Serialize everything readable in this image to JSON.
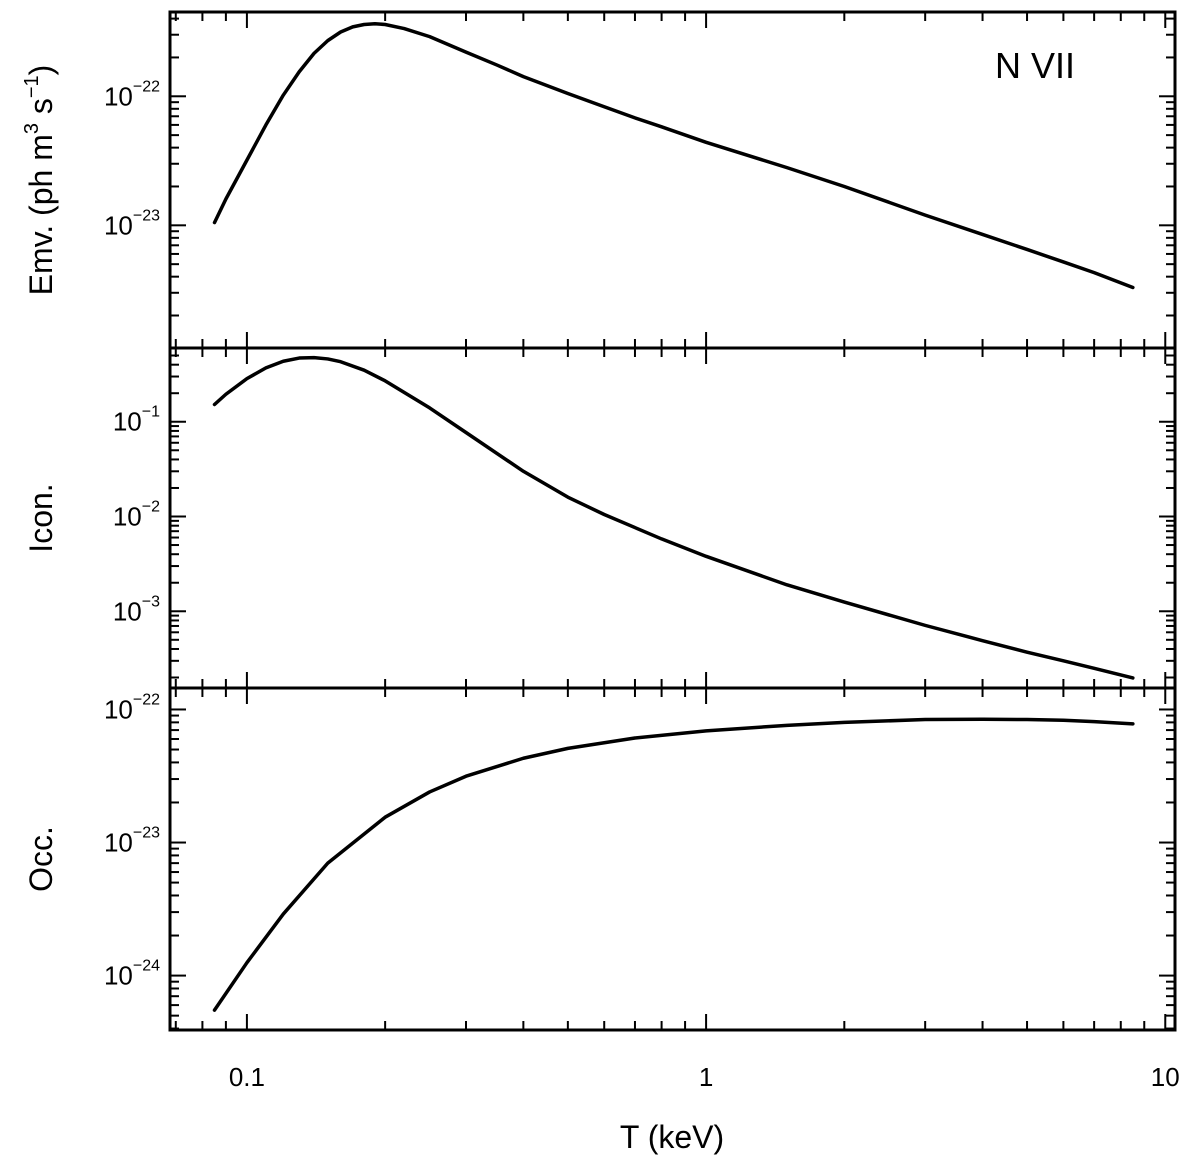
{
  "chart_data": {
    "type": "line",
    "annotation": "N VII",
    "xlabel": "T (keV)",
    "xscale": "log",
    "xlim": [
      0.068,
      10.5
    ],
    "xticks": [
      {
        "value": 0.1,
        "label": "0.1"
      },
      {
        "value": 1,
        "label": "1"
      },
      {
        "value": 10,
        "label": "10"
      }
    ],
    "panels": [
      {
        "name": "emv",
        "ylabel": "Emv. (ph m³ s⁻¹)",
        "ylabel_parts": {
          "prefix": "Emv. (ph m",
          "sup1": "3",
          "mid": " s",
          "sup2": "−1",
          "suffix": ")"
        },
        "yscale": "log",
        "ylim": [
          1.12e-24,
          4.5e-22
        ],
        "yticks": [
          {
            "value": 1e-22,
            "base": "10",
            "exp": "−22"
          },
          {
            "value": 1e-23,
            "base": "10",
            "exp": "−23"
          }
        ],
        "series": [
          {
            "name": "Emv.",
            "x": [
              0.085,
              0.09,
              0.1,
              0.11,
              0.12,
              0.13,
              0.14,
              0.15,
              0.16,
              0.17,
              0.18,
              0.19,
              0.2,
              0.22,
              0.25,
              0.3,
              0.35,
              0.4,
              0.5,
              0.6,
              0.7,
              0.8,
              1.0,
              1.5,
              2.0,
              3.0,
              4.0,
              5.0,
              6.0,
              7.0,
              8.5
            ],
            "y": [
              1.05e-23,
              1.6e-23,
              3.2e-23,
              6e-23,
              1.02e-22,
              1.55e-22,
              2.15e-22,
              2.7e-22,
              3.15e-22,
              3.45e-22,
              3.6e-22,
              3.65e-22,
              3.6e-22,
              3.35e-22,
              2.9e-22,
              2.2e-22,
              1.75e-22,
              1.42e-22,
              1.05e-22,
              8.3e-23,
              6.8e-23,
              5.8e-23,
              4.4e-23,
              2.8e-23,
              2e-23,
              1.2e-23,
              8.5e-24,
              6.5e-24,
              5.2e-24,
              4.3e-24,
              3.3e-24
            ]
          }
        ]
      },
      {
        "name": "icon",
        "ylabel": "Icon.",
        "yscale": "log",
        "ylim": [
          0.000155,
          0.6
        ],
        "yticks": [
          {
            "value": 0.1,
            "base": "10",
            "exp": "−1"
          },
          {
            "value": 0.01,
            "base": "10",
            "exp": "−2"
          },
          {
            "value": 0.001,
            "base": "10",
            "exp": "−3"
          }
        ],
        "series": [
          {
            "name": "Icon.",
            "x": [
              0.085,
              0.09,
              0.1,
              0.11,
              0.12,
              0.13,
              0.14,
              0.15,
              0.16,
              0.18,
              0.2,
              0.25,
              0.3,
              0.4,
              0.5,
              0.6,
              0.8,
              1.0,
              1.5,
              2.0,
              3.0,
              4.0,
              5.0,
              6.0,
              7.0,
              8.5
            ],
            "y": [
              0.152,
              0.195,
              0.285,
              0.37,
              0.435,
              0.47,
              0.475,
              0.46,
              0.43,
              0.35,
              0.27,
              0.14,
              0.077,
              0.03,
              0.016,
              0.0105,
              0.0058,
              0.0038,
              0.0019,
              0.00125,
              0.00071,
              0.00049,
              0.00037,
              0.0003,
              0.00025,
              0.000198
            ]
          }
        ]
      },
      {
        "name": "occ",
        "ylabel": "Occ.",
        "yscale": "log",
        "ylim": [
          3.9e-25,
          1.45e-22
        ],
        "yticks": [
          {
            "value": 1e-22,
            "base": "10",
            "exp": "−22"
          },
          {
            "value": 1e-23,
            "base": "10",
            "exp": "−23"
          },
          {
            "value": 1e-24,
            "base": "10",
            "exp": "−24"
          }
        ],
        "series": [
          {
            "name": "Occ.",
            "x": [
              0.085,
              0.1,
              0.12,
              0.15,
              0.2,
              0.25,
              0.3,
              0.4,
              0.5,
              0.7,
              1.0,
              1.5,
              2.0,
              3.0,
              4.0,
              5.0,
              6.0,
              7.0,
              8.5
            ],
            "y": [
              5.5e-25,
              1.25e-24,
              2.9e-24,
              7e-24,
              1.55e-23,
              2.4e-23,
              3.15e-23,
              4.3e-23,
              5.1e-23,
              6.1e-23,
              6.9e-23,
              7.6e-23,
              8e-23,
              8.4e-23,
              8.45e-23,
              8.4e-23,
              8.3e-23,
              8.1e-23,
              7.8e-23
            ]
          }
        ]
      }
    ]
  }
}
